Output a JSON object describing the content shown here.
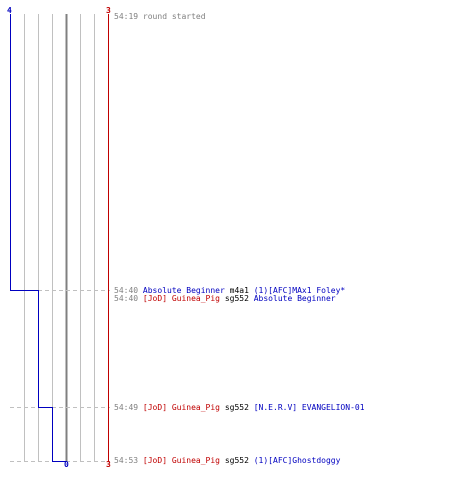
{
  "score_labels": {
    "blue_start": "4",
    "red_start": "3",
    "blue_end": "0",
    "red_end": "3"
  },
  "colors": {
    "blue_team": "#0000c0",
    "red_team": "#c00000",
    "time": "#808080",
    "weapon": "#000000",
    "grid": "#c0c0c0",
    "center": "#808080"
  },
  "events": [
    {
      "time": "54:19",
      "message": "round started"
    },
    {
      "time": "54:40",
      "killer": "Absolute Beginner",
      "weapon": "m4a1",
      "victim": "(1)[AFC]MAx1 Foley*"
    },
    {
      "time": "54:40",
      "killer": "[JoD] Guinea_Pig",
      "weapon": "sg552",
      "victim": "Absolute Beginner"
    },
    {
      "time": "54:49",
      "killer": "[JoD] Guinea_Pig",
      "weapon": "sg552",
      "victim": "[N.E.R.V] EVANGELION-01"
    },
    {
      "time": "54:53",
      "killer": "[JoD] Guinea_Pig",
      "weapon": "sg552",
      "victim": "(1)[AFC]Ghostdoggy"
    }
  ]
}
